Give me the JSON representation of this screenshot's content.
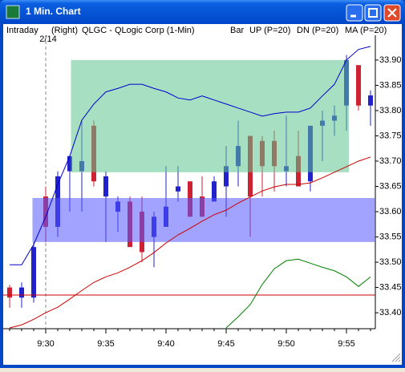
{
  "window": {
    "title": "1 Min. Chart"
  },
  "chart_data": {
    "type": "candlestick",
    "header": {
      "mode": "Intraday",
      "scale": "(Right)",
      "symbol": "QLGC - QLogic Corp (1-Min)"
    },
    "categories": [
      null,
      null,
      null,
      "9:30",
      null,
      null,
      null,
      null,
      "9:35",
      null,
      null,
      null,
      null,
      "9:40",
      null,
      null,
      null,
      null,
      "9:45",
      null,
      null,
      null,
      null,
      "9:50",
      null,
      null,
      null,
      null,
      "9:55",
      null,
      null
    ],
    "date_marker": {
      "category": "9:30",
      "label": "2/14"
    },
    "candles": {
      "name": "Bar",
      "up_color": "#2222cc",
      "down_color": "#cc2233",
      "open": [
        33.45,
        33.43,
        33.43,
        33.63,
        33.57,
        33.68,
        33.68,
        33.77,
        33.63,
        33.6,
        33.62,
        33.6,
        33.55,
        33.57,
        33.64,
        33.66,
        33.63,
        33.62,
        33.65,
        33.69,
        33.75,
        33.74,
        33.74,
        33.68,
        33.71,
        33.66,
        33.77,
        33.78,
        33.81,
        33.89,
        33.81
      ],
      "high": [
        33.455,
        33.46,
        33.54,
        33.65,
        33.68,
        33.71,
        33.78,
        33.78,
        33.68,
        33.63,
        33.63,
        33.63,
        33.6,
        33.69,
        33.69,
        33.66,
        33.67,
        33.67,
        33.73,
        33.78,
        33.75,
        33.75,
        33.76,
        33.79,
        33.76,
        33.77,
        33.8,
        33.81,
        33.91,
        33.89,
        33.84
      ],
      "low": [
        33.41,
        33.41,
        33.42,
        33.54,
        33.55,
        33.6,
        33.6,
        33.65,
        33.54,
        33.56,
        33.53,
        33.5,
        33.49,
        33.57,
        33.62,
        33.59,
        33.59,
        33.62,
        33.59,
        33.65,
        33.55,
        33.63,
        33.64,
        33.65,
        33.65,
        33.64,
        33.7,
        33.75,
        33.76,
        33.8,
        33.77
      ],
      "close": [
        33.43,
        33.45,
        33.53,
        33.57,
        33.67,
        33.71,
        33.7,
        33.66,
        33.67,
        33.62,
        33.53,
        33.52,
        33.59,
        33.61,
        33.65,
        33.59,
        33.59,
        33.66,
        33.69,
        33.73,
        33.63,
        33.69,
        33.69,
        33.69,
        33.65,
        33.77,
        33.78,
        33.79,
        33.9,
        33.81,
        33.83
      ]
    },
    "series": [
      {
        "name": "UP (P=20)",
        "color": "#0000cc",
        "values": [
          33.495,
          33.495,
          33.535,
          33.59,
          33.654,
          33.71,
          33.781,
          33.813,
          33.837,
          33.844,
          33.852,
          33.852,
          33.844,
          33.837,
          33.825,
          33.821,
          33.829,
          33.821,
          33.813,
          33.805,
          33.797,
          33.789,
          33.794,
          33.797,
          33.797,
          33.805,
          33.829,
          33.852,
          33.9,
          33.921,
          33.927
        ]
      },
      {
        "name": "DN (P=20)",
        "color": "#008000",
        "values": [
          null,
          null,
          null,
          null,
          null,
          null,
          null,
          null,
          null,
          null,
          null,
          null,
          null,
          null,
          null,
          null,
          null,
          null,
          33.37,
          33.392,
          33.416,
          33.456,
          33.487,
          33.503,
          33.506,
          33.498,
          33.49,
          33.483,
          33.471,
          33.452,
          33.471
        ]
      },
      {
        "name": "MA (P=20)",
        "color": "#cc0000",
        "values": [
          33.37,
          33.376,
          33.387,
          33.4,
          33.411,
          33.427,
          33.444,
          33.46,
          33.471,
          33.479,
          33.49,
          33.503,
          33.519,
          33.538,
          33.554,
          33.567,
          33.581,
          33.594,
          33.603,
          33.617,
          33.629,
          33.641,
          33.649,
          33.654,
          33.654,
          33.657,
          33.667,
          33.678,
          33.689,
          33.7,
          33.708
        ]
      }
    ],
    "hline": {
      "value": 33.435,
      "color": "#cc0000"
    },
    "zones": [
      {
        "color": "#5cc58e",
        "low": 33.678,
        "high": 33.9,
        "from": 5.1,
        "to": 28.2
      },
      {
        "color": "#5555ff",
        "low": 33.54,
        "high": 33.627,
        "from": 1.9,
        "to": 30.5
      }
    ],
    "ylim": [
      33.37,
      33.93
    ],
    "yticks": [
      {
        "value": 33.4,
        "label": "33.40"
      },
      {
        "value": 33.45,
        "label": "33.45"
      },
      {
        "value": 33.5,
        "label": "33.50"
      },
      {
        "value": 33.55,
        "label": "33.55"
      },
      {
        "value": 33.6,
        "label": "33.60"
      },
      {
        "value": 33.65,
        "label": "33.65"
      },
      {
        "value": 33.7,
        "label": "33.70"
      },
      {
        "value": 33.75,
        "label": "33.75"
      },
      {
        "value": 33.8,
        "label": "33.80"
      },
      {
        "value": 33.85,
        "label": "33.85"
      },
      {
        "value": 33.9,
        "label": "33.90"
      }
    ]
  }
}
